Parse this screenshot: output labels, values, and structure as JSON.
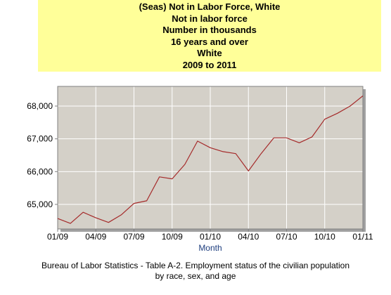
{
  "chart_data": {
    "type": "line",
    "title_lines": [
      "(Seas) Not in Labor Force, White",
      "Not in labor force",
      "Number in thousands",
      "16 years and over",
      "White",
      "2009 to 2011"
    ],
    "xlabel": "Month",
    "ylabel": "",
    "x_tick_labels": [
      "01/09",
      "04/09",
      "07/09",
      "10/09",
      "01/10",
      "04/10",
      "07/10",
      "10/10",
      "01/11"
    ],
    "y_tick_labels": [
      "65,000",
      "66,000",
      "67,000",
      "68,000"
    ],
    "y_ticks": [
      65000,
      66000,
      67000,
      68000
    ],
    "ylim": [
      64250,
      68600
    ],
    "grid": true,
    "series": [
      {
        "color": "#a52a2a",
        "values": [
          {
            "x": "01/09",
            "y": 64570
          },
          {
            "x": "02/09",
            "y": 64420
          },
          {
            "x": "03/09",
            "y": 64760
          },
          {
            "x": "04/09",
            "y": 64590
          },
          {
            "x": "05/09",
            "y": 64450
          },
          {
            "x": "06/09",
            "y": 64680
          },
          {
            "x": "07/09",
            "y": 65030
          },
          {
            "x": "08/09",
            "y": 65110
          },
          {
            "x": "09/09",
            "y": 65840
          },
          {
            "x": "10/09",
            "y": 65780
          },
          {
            "x": "11/09",
            "y": 66220
          },
          {
            "x": "12/09",
            "y": 66930
          },
          {
            "x": "01/10",
            "y": 66730
          },
          {
            "x": "02/10",
            "y": 66610
          },
          {
            "x": "03/10",
            "y": 66550
          },
          {
            "x": "04/10",
            "y": 66020
          },
          {
            "x": "05/10",
            "y": 66550
          },
          {
            "x": "06/10",
            "y": 67030
          },
          {
            "x": "07/10",
            "y": 67030
          },
          {
            "x": "08/10",
            "y": 66880
          },
          {
            "x": "09/10",
            "y": 67060
          },
          {
            "x": "10/10",
            "y": 67600
          },
          {
            "x": "11/10",
            "y": 67780
          },
          {
            "x": "12/10",
            "y": 68000
          },
          {
            "x": "01/11",
            "y": 68310
          }
        ]
      }
    ],
    "plot_background": "#d4d0c8",
    "grid_color": "#ffffff",
    "title_background": "#ffff99",
    "xlabel_color": "#1f3f7f"
  },
  "footer": {
    "line1": "Bureau of Labor Statistics - Table A-2. Employment status of the civilian population",
    "line2": "by race, sex, and age"
  }
}
